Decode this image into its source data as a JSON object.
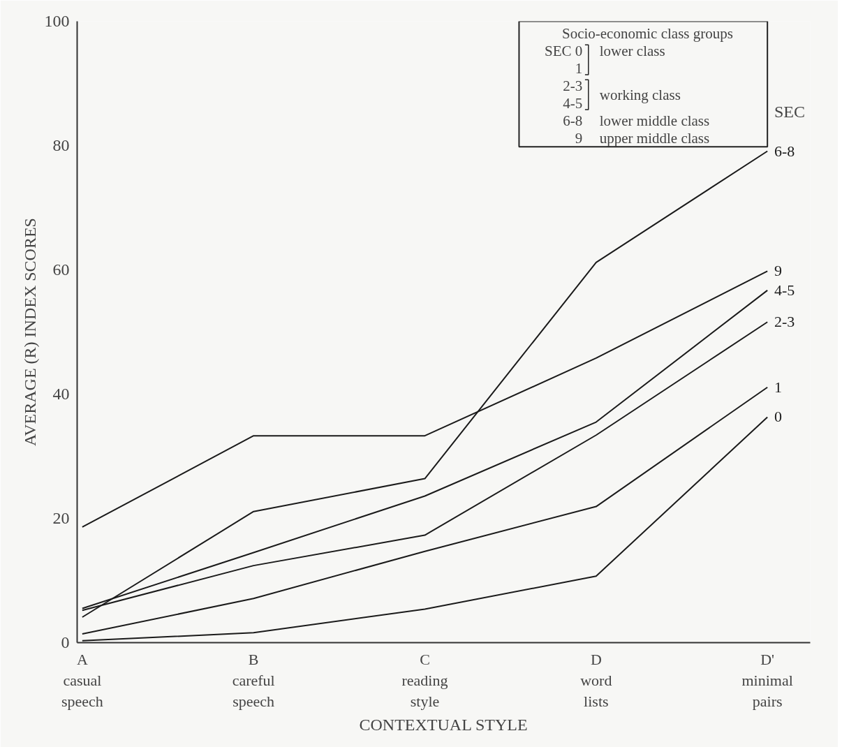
{
  "chart_data": {
    "type": "line",
    "xlabel": "CONTEXTUAL STYLE",
    "ylabel": "AVERAGE (R) INDEX SCORES",
    "categories": [
      "A\ncasual\nspeech",
      "B\ncareful\nspeech",
      "C\nreading\nstyle",
      "D\nword\nlists",
      "D'\nminimal\npairs"
    ],
    "ylim": [
      0,
      100
    ],
    "yticks": [
      0,
      20,
      40,
      60,
      80,
      100
    ],
    "grid": false,
    "legend": "top right",
    "marker": "none",
    "line_style": "solid",
    "series": [
      {
        "name": "6-8",
        "color": "#1a1a1a",
        "values": [
          4.1,
          21.1,
          26.4,
          61.2,
          79.1
        ]
      },
      {
        "name": "9",
        "color": "#1a1a1a",
        "values": [
          18.6,
          33.3,
          33.3,
          45.8,
          59.8
        ]
      },
      {
        "name": "4-5",
        "color": "#1a1a1a",
        "values": [
          5.5,
          14.5,
          23.6,
          35.5,
          56.7
        ]
      },
      {
        "name": "2-3",
        "color": "#1a1a1a",
        "values": [
          5.2,
          12.4,
          17.3,
          33.4,
          51.6
        ]
      },
      {
        "name": "1",
        "color": "#1a1a1a",
        "values": [
          1.4,
          7.1,
          14.7,
          21.9,
          41.1
        ]
      },
      {
        "name": "0",
        "color": "#1a1a1a",
        "values": [
          0.3,
          1.6,
          5.4,
          10.7,
          36.3
        ]
      }
    ],
    "annotations": [
      "SEC",
      "Socio-economic class groups",
      "SEC 0",
      "1",
      "2-3",
      "4-5",
      "6-8",
      "9",
      "lower class",
      "working class",
      "lower middle class",
      "upper middle class"
    ]
  }
}
